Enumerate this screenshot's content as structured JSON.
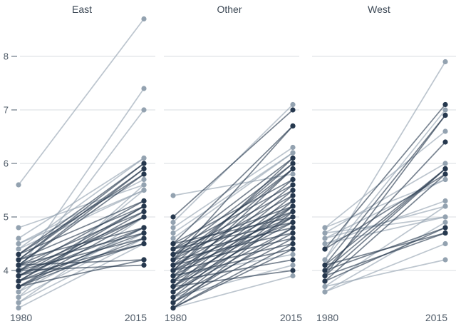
{
  "chart_data": {
    "type": "slope",
    "title": "",
    "x_categories": [
      "1980",
      "2015"
    ],
    "y_ticks": [
      4,
      5,
      6,
      7,
      8
    ],
    "y_range": [
      3.1,
      8.9
    ],
    "grid": "horizontal-only",
    "legend": "none",
    "colors": {
      "dark": "#26384e",
      "light": "#93a2b0",
      "gridline": "#d8dde2",
      "tick_dash": "#6b7785",
      "tick_text": "#4d5966",
      "panel_title": "#3b4754",
      "axis_label": "#4d5966",
      "background": "#ffffff"
    },
    "panels": [
      {
        "title": "East",
        "lines": [
          [
            5.6,
            8.7,
            "l"
          ],
          [
            4.0,
            7.4,
            "l"
          ],
          [
            3.9,
            7.0,
            "l"
          ],
          [
            4.8,
            5.6,
            "l"
          ],
          [
            4.6,
            6.1,
            "l"
          ],
          [
            4.4,
            6.1,
            "l"
          ],
          [
            4.5,
            5.7,
            "l"
          ],
          [
            4.4,
            5.5,
            "l"
          ],
          [
            4.5,
            5.5,
            "l"
          ],
          [
            3.6,
            5.5,
            "l"
          ],
          [
            3.5,
            5.6,
            "l"
          ],
          [
            3.6,
            4.8,
            "l"
          ],
          [
            3.5,
            4.7,
            "l"
          ],
          [
            3.4,
            5.0,
            "l"
          ],
          [
            3.4,
            4.6,
            "l"
          ],
          [
            3.3,
            4.5,
            "l"
          ],
          [
            4.3,
            6.0,
            "d"
          ],
          [
            4.2,
            5.9,
            "d"
          ],
          [
            4.1,
            5.8,
            "d"
          ],
          [
            4.0,
            5.3,
            "d"
          ],
          [
            3.9,
            5.2,
            "d"
          ],
          [
            3.8,
            5.1,
            "d"
          ],
          [
            3.7,
            5.0,
            "d"
          ],
          [
            4.3,
            5.3,
            "d"
          ],
          [
            4.2,
            5.2,
            "d"
          ],
          [
            4.1,
            5.1,
            "d"
          ],
          [
            4.0,
            5.0,
            "d"
          ],
          [
            3.9,
            4.8,
            "d"
          ],
          [
            3.8,
            4.7,
            "d"
          ],
          [
            3.7,
            4.6,
            "d"
          ],
          [
            4.2,
            4.8,
            "d"
          ],
          [
            4.1,
            4.7,
            "d"
          ],
          [
            4.0,
            4.6,
            "d"
          ],
          [
            3.9,
            4.5,
            "d"
          ],
          [
            3.8,
            4.5,
            "d"
          ],
          [
            3.7,
            4.2,
            "d"
          ],
          [
            4.1,
            4.2,
            "d"
          ],
          [
            4.0,
            4.1,
            "d"
          ],
          [
            4.3,
            5.8,
            "d"
          ],
          [
            4.2,
            6.0,
            "d"
          ],
          [
            4.1,
            5.9,
            "d"
          ],
          [
            3.9,
            5.0,
            "d"
          ],
          [
            3.8,
            5.2,
            "d"
          ],
          [
            3.7,
            4.8,
            "d"
          ]
        ]
      },
      {
        "title": "Other",
        "lines": [
          [
            5.4,
            5.8,
            "l"
          ],
          [
            4.9,
            7.1,
            "l"
          ],
          [
            4.8,
            6.3,
            "l"
          ],
          [
            4.7,
            6.2,
            "l"
          ],
          [
            4.6,
            6.2,
            "l"
          ],
          [
            3.9,
            4.3,
            "l"
          ],
          [
            3.5,
            4.1,
            "l"
          ],
          [
            3.3,
            3.9,
            "l"
          ],
          [
            5.0,
            7.0,
            "d"
          ],
          [
            4.5,
            6.7,
            "d"
          ],
          [
            4.4,
            6.1,
            "d"
          ],
          [
            4.3,
            6.0,
            "d"
          ],
          [
            4.2,
            5.9,
            "d"
          ],
          [
            4.5,
            5.7,
            "d"
          ],
          [
            4.4,
            5.6,
            "d"
          ],
          [
            4.3,
            5.5,
            "d"
          ],
          [
            4.2,
            5.4,
            "d"
          ],
          [
            4.1,
            5.3,
            "d"
          ],
          [
            4.0,
            5.2,
            "d"
          ],
          [
            3.9,
            5.1,
            "d"
          ],
          [
            3.8,
            5.0,
            "d"
          ],
          [
            3.7,
            4.9,
            "d"
          ],
          [
            3.6,
            4.8,
            "d"
          ],
          [
            3.5,
            4.7,
            "d"
          ],
          [
            3.4,
            4.6,
            "d"
          ],
          [
            3.3,
            4.5,
            "d"
          ],
          [
            4.1,
            6.0,
            "d"
          ],
          [
            4.0,
            5.9,
            "d"
          ],
          [
            3.9,
            5.7,
            "d"
          ],
          [
            3.8,
            5.6,
            "d"
          ],
          [
            3.7,
            5.5,
            "d"
          ],
          [
            3.6,
            5.4,
            "d"
          ],
          [
            3.5,
            5.3,
            "d"
          ],
          [
            3.4,
            5.2,
            "d"
          ],
          [
            3.3,
            5.1,
            "d"
          ],
          [
            4.5,
            5.0,
            "d"
          ],
          [
            4.4,
            4.9,
            "d"
          ],
          [
            4.3,
            4.8,
            "d"
          ],
          [
            4.2,
            4.7,
            "d"
          ],
          [
            4.1,
            4.6,
            "d"
          ],
          [
            4.0,
            4.5,
            "d"
          ],
          [
            3.9,
            4.4,
            "d"
          ],
          [
            3.8,
            4.2,
            "d"
          ],
          [
            3.7,
            4.0,
            "d"
          ],
          [
            4.2,
            6.7,
            "d"
          ],
          [
            4.0,
            6.1,
            "d"
          ],
          [
            3.8,
            5.9,
            "d"
          ],
          [
            3.6,
            5.0,
            "d"
          ],
          [
            3.4,
            4.8,
            "d"
          ],
          [
            3.3,
            4.4,
            "d"
          ],
          [
            4.4,
            5.2,
            "d"
          ],
          [
            4.3,
            5.1,
            "d"
          ],
          [
            4.1,
            5.0,
            "d"
          ],
          [
            4.0,
            4.9,
            "d"
          ],
          [
            3.7,
            5.2,
            "d"
          ]
        ]
      },
      {
        "title": "West",
        "lines": [
          [
            4.2,
            7.9,
            "l"
          ],
          [
            4.2,
            7.0,
            "l"
          ],
          [
            4.8,
            6.6,
            "l"
          ],
          [
            4.7,
            6.0,
            "l"
          ],
          [
            4.6,
            5.7,
            "l"
          ],
          [
            4.8,
            5.7,
            "l"
          ],
          [
            4.5,
            5.3,
            "l"
          ],
          [
            4.6,
            5.2,
            "l"
          ],
          [
            3.7,
            5.2,
            "l"
          ],
          [
            4.7,
            5.0,
            "l"
          ],
          [
            4.5,
            5.0,
            "l"
          ],
          [
            3.6,
            4.9,
            "l"
          ],
          [
            3.6,
            4.5,
            "l"
          ],
          [
            3.7,
            4.2,
            "l"
          ],
          [
            4.4,
            7.1,
            "d"
          ],
          [
            4.1,
            6.9,
            "d"
          ],
          [
            3.9,
            6.9,
            "d"
          ],
          [
            4.0,
            6.4,
            "d"
          ],
          [
            3.9,
            5.9,
            "d"
          ],
          [
            4.1,
            5.9,
            "d"
          ],
          [
            4.0,
            5.9,
            "d"
          ],
          [
            3.8,
            5.8,
            "d"
          ],
          [
            4.4,
            5.8,
            "d"
          ],
          [
            4.0,
            4.8,
            "d"
          ],
          [
            3.8,
            4.8,
            "d"
          ],
          [
            3.9,
            4.7,
            "d"
          ],
          [
            4.1,
            4.7,
            "d"
          ]
        ]
      }
    ]
  }
}
